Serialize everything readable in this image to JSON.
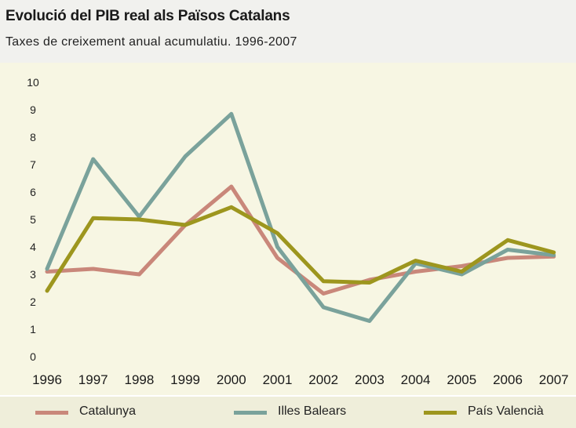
{
  "title": "Evolució del PIB real als Països Catalans",
  "subtitle": "Taxes de creixement anual acumulatiu. 1996-2007",
  "chart_data": {
    "type": "line",
    "categories": [
      "1996",
      "1997",
      "1998",
      "1999",
      "2000",
      "2001",
      "2002",
      "2003",
      "2004",
      "2005",
      "2006",
      "2007"
    ],
    "y_ticks": [
      "0",
      "1",
      "2",
      "3",
      "4",
      "5",
      "6",
      "7",
      "8",
      "9",
      "10"
    ],
    "ylim": [
      0,
      10
    ],
    "grid": false,
    "legend_position": "bottom",
    "series": [
      {
        "name": "Catalunya",
        "color": "#c9877a",
        "values": [
          3.1,
          3.2,
          3.0,
          4.8,
          6.2,
          3.6,
          2.3,
          2.8,
          3.1,
          3.3,
          3.6,
          3.65
        ]
      },
      {
        "name": "Illes Balears",
        "color": "#7aa29b",
        "values": [
          3.2,
          7.2,
          5.1,
          7.3,
          8.85,
          4.0,
          1.8,
          1.3,
          3.4,
          3.0,
          3.9,
          3.7
        ]
      },
      {
        "name": "País Valencià",
        "color": "#9d961e",
        "values": [
          2.4,
          5.05,
          5.0,
          4.8,
          5.45,
          4.5,
          2.75,
          2.7,
          3.5,
          3.1,
          4.25,
          3.8
        ]
      }
    ]
  }
}
